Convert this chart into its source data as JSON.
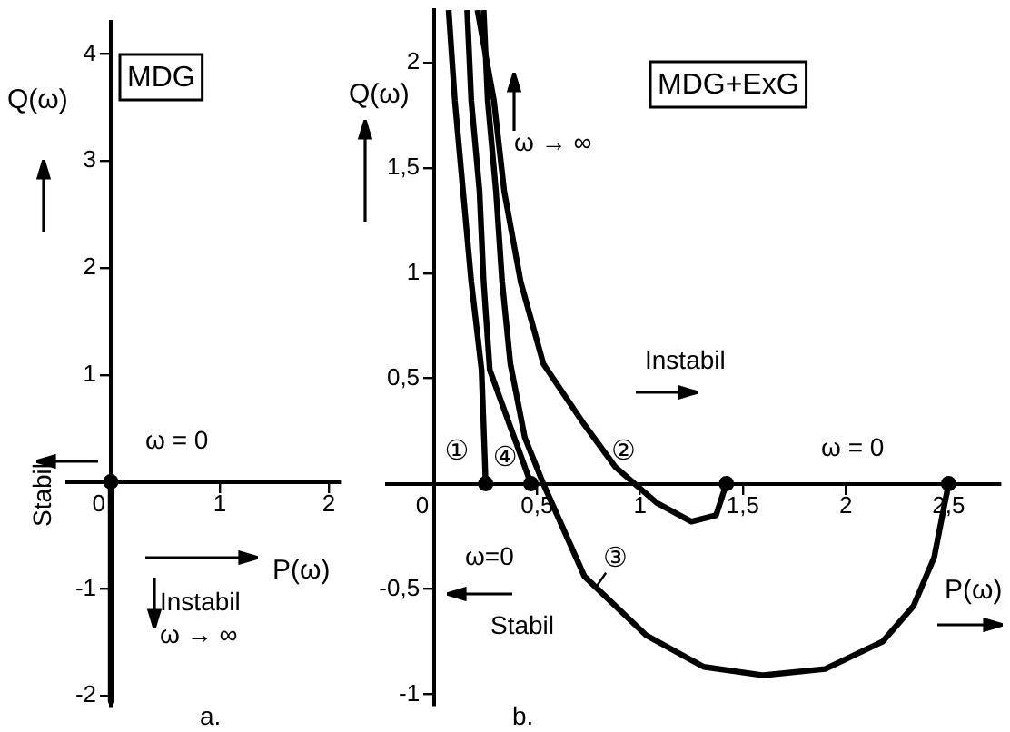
{
  "chart_data": [
    {
      "type": "line",
      "title": "MDG",
      "xlabel": "P(ω)",
      "ylabel": "Q(ω)",
      "annotations": [
        "ω = 0",
        "Stabil",
        "Instabil",
        "ω → ∞",
        "a."
      ],
      "x": [
        0,
        0
      ],
      "series": [
        {
          "color": "#000000",
          "values": [
            0,
            -2.05
          ]
        },
        {
          "type": "scatter",
          "color": "#000000",
          "x": [
            0
          ],
          "values": [
            0
          ],
          "marker": "circle"
        }
      ],
      "xlim": [
        -0.4,
        2.1
      ],
      "xticks": [
        0,
        1,
        2
      ],
      "ylim": [
        -2.1,
        4.3
      ],
      "yticks": [
        -2,
        -1,
        1,
        2,
        3,
        4
      ],
      "grid": false,
      "legend": false,
      "marker": "none"
    },
    {
      "type": "line",
      "title": "MDG+ExG",
      "xlabel": "P(ω)",
      "ylabel": "Q(ω)",
      "annotations": [
        "ω → ∞",
        "Instabil",
        "ω = 0",
        "ω=0",
        "Stabil",
        "b."
      ],
      "series": [
        {
          "name": "①",
          "color": "#000000",
          "x": [
            0.07,
            0.1,
            0.14,
            0.18,
            0.23,
            0.25
          ],
          "values": [
            2.25,
            1.82,
            1.39,
            0.96,
            0.54,
            0
          ]
        },
        {
          "name": "②",
          "color": "#000000",
          "x": [
            0.21,
            0.29,
            0.34,
            0.42,
            0.53,
            0.73,
            0.88,
            1.08,
            1.25,
            1.37,
            1.42
          ],
          "values": [
            2.25,
            1.82,
            1.39,
            0.96,
            0.57,
            0.28,
            0.08,
            -0.09,
            -0.18,
            -0.15,
            0
          ]
        },
        {
          "name": "③",
          "color": "#000000",
          "x": [
            0.24,
            0.26,
            0.3,
            0.33,
            0.37,
            0.44,
            0.53,
            0.73,
            1.03,
            1.31,
            1.6,
            1.9,
            2.18,
            2.33,
            2.43,
            2.5
          ],
          "values": [
            2.25,
            1.82,
            1.39,
            0.96,
            0.57,
            0.22,
            0,
            -0.44,
            -0.72,
            -0.87,
            -0.91,
            -0.88,
            -0.75,
            -0.58,
            -0.35,
            0
          ]
        },
        {
          "name": "④",
          "color": "#000000",
          "x": [
            0.16,
            0.18,
            0.22,
            0.24,
            0.27,
            0.47
          ],
          "values": [
            2.25,
            1.82,
            1.39,
            0.96,
            0.54,
            0
          ]
        },
        {
          "type": "scatter",
          "color": "#000000",
          "x": [
            0.25,
            0.47,
            1.42,
            2.5
          ],
          "values": [
            0,
            0,
            0,
            0
          ],
          "marker": "circle"
        }
      ],
      "xlim": [
        -0.23,
        2.75
      ],
      "xticks": [
        {
          "value": 0,
          "label": "0"
        },
        {
          "value": 0.5,
          "label": "0,5"
        },
        1,
        {
          "value": 1.5,
          "label": "1,5"
        },
        2,
        {
          "value": 2.5,
          "label": "2,5"
        }
      ],
      "ylim": [
        -1.05,
        2.25
      ],
      "yticks": [
        -1,
        {
          "value": -0.5,
          "label": "-0,5"
        },
        {
          "value": 0.5,
          "label": "0,5"
        },
        1,
        {
          "value": 1.5,
          "label": "1,5"
        },
        2
      ],
      "grid": false,
      "legend": false,
      "marker": "none"
    }
  ]
}
